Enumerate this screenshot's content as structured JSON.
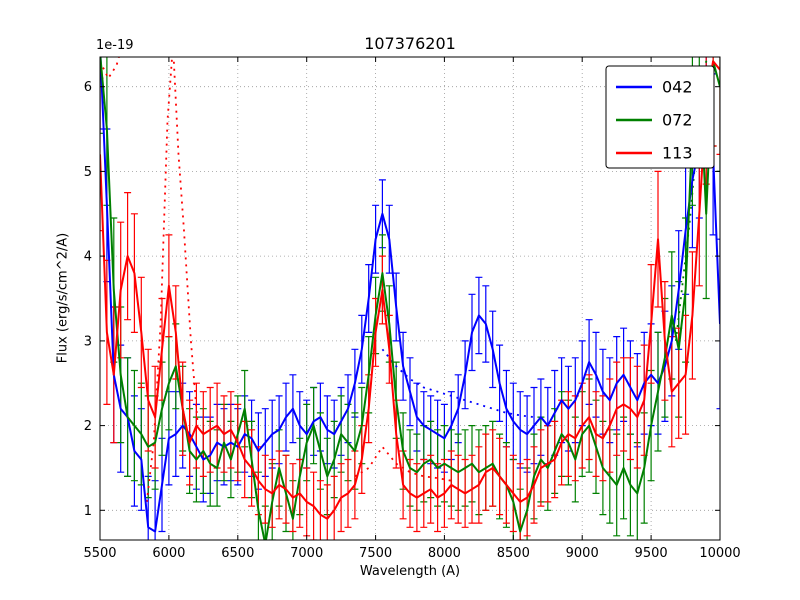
{
  "title": "107376201",
  "axes": {
    "xlabel": "Wavelength (A)",
    "ylabel": "Flux (erg/s/cm^2/A)",
    "offset_text": "1e-19"
  },
  "legend": {
    "position": "upper right",
    "entries": [
      {
        "label": "042",
        "color": "#0000ff"
      },
      {
        "label": "072",
        "color": "#008000"
      },
      {
        "label": "113",
        "color": "#ff0000"
      }
    ]
  },
  "chart_data": {
    "type": "line",
    "title": "107376201",
    "xlabel": "Wavelength (A)",
    "ylabel": "Flux (erg/s/cm^2/A)",
    "y_scale": "1e-19",
    "grid": true,
    "legend_position": "upper right",
    "xlim": [
      5500,
      10000
    ],
    "ylim": [
      0.65,
      6.35
    ],
    "xticks": [
      5500,
      6000,
      6500,
      7000,
      7500,
      8000,
      8500,
      9000,
      9500,
      10000
    ],
    "yticks": [
      1,
      2,
      3,
      4,
      5,
      6
    ],
    "x": [
      5500,
      5550,
      5600,
      5650,
      5700,
      5750,
      5800,
      5850,
      5900,
      5950,
      6000,
      6050,
      6100,
      6150,
      6200,
      6250,
      6300,
      6350,
      6400,
      6450,
      6500,
      6550,
      6600,
      6650,
      6700,
      6750,
      6800,
      6850,
      6900,
      6950,
      7000,
      7050,
      7100,
      7150,
      7200,
      7250,
      7300,
      7350,
      7400,
      7450,
      7500,
      7550,
      7600,
      7650,
      7700,
      7750,
      7800,
      7850,
      7900,
      7950,
      8000,
      8050,
      8100,
      8150,
      8200,
      8250,
      8300,
      8350,
      8400,
      8450,
      8500,
      8550,
      8600,
      8650,
      8700,
      8750,
      8800,
      8850,
      8900,
      8950,
      9000,
      9050,
      9100,
      9150,
      9200,
      9250,
      9300,
      9350,
      9400,
      9450,
      9500,
      9550,
      9600,
      9650,
      9700,
      9750,
      9800,
      9850,
      9900,
      9950,
      10000
    ],
    "series": [
      {
        "name": "042",
        "color": "#0000ff",
        "values": [
          6.5,
          4.6,
          2.6,
          2.2,
          2.1,
          1.7,
          1.6,
          0.8,
          0.75,
          1.3,
          1.85,
          1.9,
          2.0,
          1.9,
          1.75,
          1.6,
          1.65,
          1.8,
          1.75,
          1.8,
          1.75,
          1.9,
          1.85,
          1.7,
          1.8,
          1.9,
          1.95,
          2.1,
          2.2,
          2.0,
          1.9,
          2.05,
          2.1,
          1.95,
          1.9,
          2.05,
          2.2,
          2.5,
          2.9,
          3.5,
          4.2,
          4.5,
          4.2,
          3.4,
          2.7,
          2.4,
          2.1,
          2.0,
          1.95,
          1.9,
          1.85,
          2.0,
          2.2,
          2.6,
          3.1,
          3.3,
          3.2,
          2.9,
          2.5,
          2.2,
          2.05,
          1.95,
          1.9,
          2.0,
          2.1,
          2.0,
          2.15,
          2.3,
          2.2,
          2.3,
          2.5,
          2.75,
          2.6,
          2.4,
          2.3,
          2.5,
          2.6,
          2.45,
          2.3,
          2.5,
          2.6,
          2.5,
          2.7,
          3.0,
          3.6,
          4.3,
          4.9,
          5.3,
          6.0,
          5.2,
          3.2
        ],
        "errors": [
          1.0,
          0.9,
          0.8,
          0.75,
          0.7,
          0.65,
          0.6,
          0.6,
          0.6,
          0.55,
          0.55,
          0.5,
          0.5,
          0.5,
          0.5,
          0.5,
          0.45,
          0.45,
          0.45,
          0.45,
          0.45,
          0.45,
          0.45,
          0.45,
          0.4,
          0.4,
          0.4,
          0.4,
          0.4,
          0.4,
          0.4,
          0.4,
          0.4,
          0.4,
          0.4,
          0.4,
          0.4,
          0.4,
          0.4,
          0.4,
          0.4,
          0.4,
          0.4,
          0.4,
          0.4,
          0.4,
          0.4,
          0.4,
          0.4,
          0.4,
          0.4,
          0.4,
          0.4,
          0.4,
          0.45,
          0.45,
          0.45,
          0.45,
          0.45,
          0.45,
          0.45,
          0.45,
          0.45,
          0.45,
          0.45,
          0.45,
          0.5,
          0.5,
          0.5,
          0.5,
          0.5,
          0.5,
          0.5,
          0.5,
          0.5,
          0.55,
          0.55,
          0.55,
          0.55,
          0.6,
          0.6,
          0.6,
          0.65,
          0.65,
          0.7,
          0.75,
          0.8,
          0.85,
          0.9,
          0.95,
          1.0
        ]
      },
      {
        "name": "072",
        "color": "#008000",
        "values": [
          6.4,
          5.5,
          3.6,
          2.6,
          2.1,
          2.0,
          1.9,
          1.75,
          1.8,
          2.2,
          2.5,
          2.7,
          2.2,
          1.7,
          1.6,
          1.7,
          1.55,
          1.5,
          1.8,
          1.6,
          1.9,
          2.2,
          1.6,
          1.0,
          0.6,
          1.1,
          1.5,
          1.2,
          0.9,
          1.4,
          1.8,
          2.0,
          1.7,
          1.4,
          1.6,
          1.9,
          1.8,
          1.7,
          2.0,
          2.6,
          3.3,
          3.8,
          3.2,
          2.3,
          1.7,
          1.5,
          1.45,
          1.55,
          1.6,
          1.5,
          1.55,
          1.5,
          1.45,
          1.5,
          1.55,
          1.45,
          1.5,
          1.55,
          1.4,
          1.3,
          1.1,
          0.75,
          1.0,
          1.4,
          1.6,
          1.5,
          1.7,
          1.9,
          1.8,
          1.6,
          1.9,
          2.0,
          1.75,
          1.5,
          1.4,
          1.3,
          1.5,
          1.3,
          1.2,
          1.5,
          2.0,
          2.4,
          2.8,
          3.3,
          2.9,
          3.6,
          5.5,
          6.2,
          4.5,
          6.3,
          6.0
        ],
        "errors": [
          0.95,
          0.9,
          0.85,
          0.8,
          0.7,
          0.65,
          0.6,
          0.6,
          0.55,
          0.55,
          0.55,
          0.5,
          0.5,
          0.5,
          0.5,
          0.5,
          0.5,
          0.45,
          0.45,
          0.45,
          0.45,
          0.45,
          0.45,
          0.45,
          0.45,
          0.45,
          0.45,
          0.45,
          0.45,
          0.45,
          0.45,
          0.45,
          0.45,
          0.45,
          0.45,
          0.45,
          0.45,
          0.45,
          0.45,
          0.45,
          0.45,
          0.45,
          0.45,
          0.45,
          0.45,
          0.45,
          0.45,
          0.45,
          0.45,
          0.45,
          0.45,
          0.45,
          0.45,
          0.45,
          0.45,
          0.5,
          0.5,
          0.5,
          0.5,
          0.5,
          0.5,
          0.5,
          0.5,
          0.5,
          0.5,
          0.5,
          0.5,
          0.5,
          0.5,
          0.5,
          0.5,
          0.55,
          0.55,
          0.55,
          0.55,
          0.6,
          0.6,
          0.6,
          0.6,
          0.65,
          0.65,
          0.7,
          0.7,
          0.75,
          0.8,
          0.85,
          0.9,
          0.95,
          1.0,
          1.0,
          1.0
        ]
      },
      {
        "name": "113",
        "color": "#ff0000",
        "values": [
          5.2,
          3.1,
          2.6,
          3.6,
          4.0,
          3.8,
          3.1,
          2.3,
          2.1,
          2.9,
          3.65,
          3.1,
          2.2,
          1.8,
          2.0,
          1.9,
          1.95,
          2.0,
          1.9,
          1.95,
          1.8,
          1.6,
          1.5,
          1.35,
          1.25,
          1.2,
          1.3,
          1.25,
          1.15,
          1.2,
          1.1,
          1.05,
          0.95,
          0.9,
          1.0,
          1.15,
          1.2,
          1.3,
          1.6,
          2.2,
          3.1,
          3.6,
          2.9,
          1.9,
          1.3,
          1.2,
          1.15,
          1.2,
          1.25,
          1.15,
          1.2,
          1.3,
          1.25,
          1.2,
          1.25,
          1.3,
          1.45,
          1.5,
          1.4,
          1.3,
          1.2,
          1.1,
          1.15,
          1.3,
          1.5,
          1.55,
          1.6,
          1.8,
          1.9,
          1.85,
          2.0,
          2.1,
          1.9,
          1.85,
          2.0,
          2.2,
          2.25,
          2.2,
          2.1,
          2.3,
          3.2,
          4.2,
          3.0,
          2.4,
          2.5,
          2.6,
          3.3,
          4.5,
          5.8,
          6.3,
          6.2
        ],
        "errors": [
          0.9,
          0.85,
          0.8,
          0.8,
          0.75,
          0.7,
          0.65,
          0.6,
          0.6,
          0.6,
          0.6,
          0.55,
          0.55,
          0.5,
          0.5,
          0.5,
          0.5,
          0.5,
          0.45,
          0.45,
          0.45,
          0.45,
          0.45,
          0.4,
          0.4,
          0.4,
          0.4,
          0.4,
          0.4,
          0.4,
          0.4,
          0.4,
          0.4,
          0.4,
          0.4,
          0.4,
          0.4,
          0.4,
          0.4,
          0.4,
          0.4,
          0.4,
          0.4,
          0.4,
          0.4,
          0.4,
          0.4,
          0.4,
          0.4,
          0.4,
          0.4,
          0.4,
          0.4,
          0.4,
          0.4,
          0.45,
          0.45,
          0.45,
          0.45,
          0.45,
          0.45,
          0.45,
          0.45,
          0.45,
          0.45,
          0.45,
          0.45,
          0.5,
          0.5,
          0.5,
          0.5,
          0.5,
          0.5,
          0.5,
          0.55,
          0.55,
          0.55,
          0.6,
          0.6,
          0.65,
          0.7,
          0.8,
          0.7,
          0.65,
          0.65,
          0.7,
          0.75,
          0.85,
          0.95,
          1.0,
          1.0
        ]
      }
    ],
    "dotted_overlays": [
      {
        "color": "#0000ff",
        "x": [
          7550,
          7650,
          7750,
          7850,
          7950,
          8050,
          8150,
          8250,
          8350,
          8450,
          8550,
          8650
        ],
        "y": [
          2.9,
          2.7,
          2.55,
          2.45,
          2.4,
          2.35,
          2.3,
          2.25,
          2.2,
          2.15,
          2.12,
          2.1
        ]
      },
      {
        "color": "#ff0000",
        "x": [
          5840,
          5890,
          5940,
          5990,
          6030,
          6070,
          6110,
          6160,
          6210
        ],
        "y": [
          1.1,
          1.8,
          3.2,
          5.6,
          6.5,
          5.2,
          4.3,
          3.0,
          2.0
        ]
      },
      {
        "color": "#ff0000",
        "x": [
          5500,
          5560,
          5620,
          5680
        ],
        "y": [
          6.3,
          6.1,
          6.25,
          6.6
        ]
      },
      {
        "color": "#ff0000",
        "x": [
          7350,
          7450,
          7550,
          7650,
          7750,
          7850,
          7950,
          8050
        ],
        "y": [
          1.4,
          1.5,
          1.75,
          1.55,
          1.45,
          1.4,
          1.38,
          1.35
        ]
      },
      {
        "color": "#008000",
        "x": [
          9680,
          9780,
          9880,
          9960
        ],
        "y": [
          3.0,
          4.4,
          6.2,
          6.6
        ]
      }
    ]
  }
}
